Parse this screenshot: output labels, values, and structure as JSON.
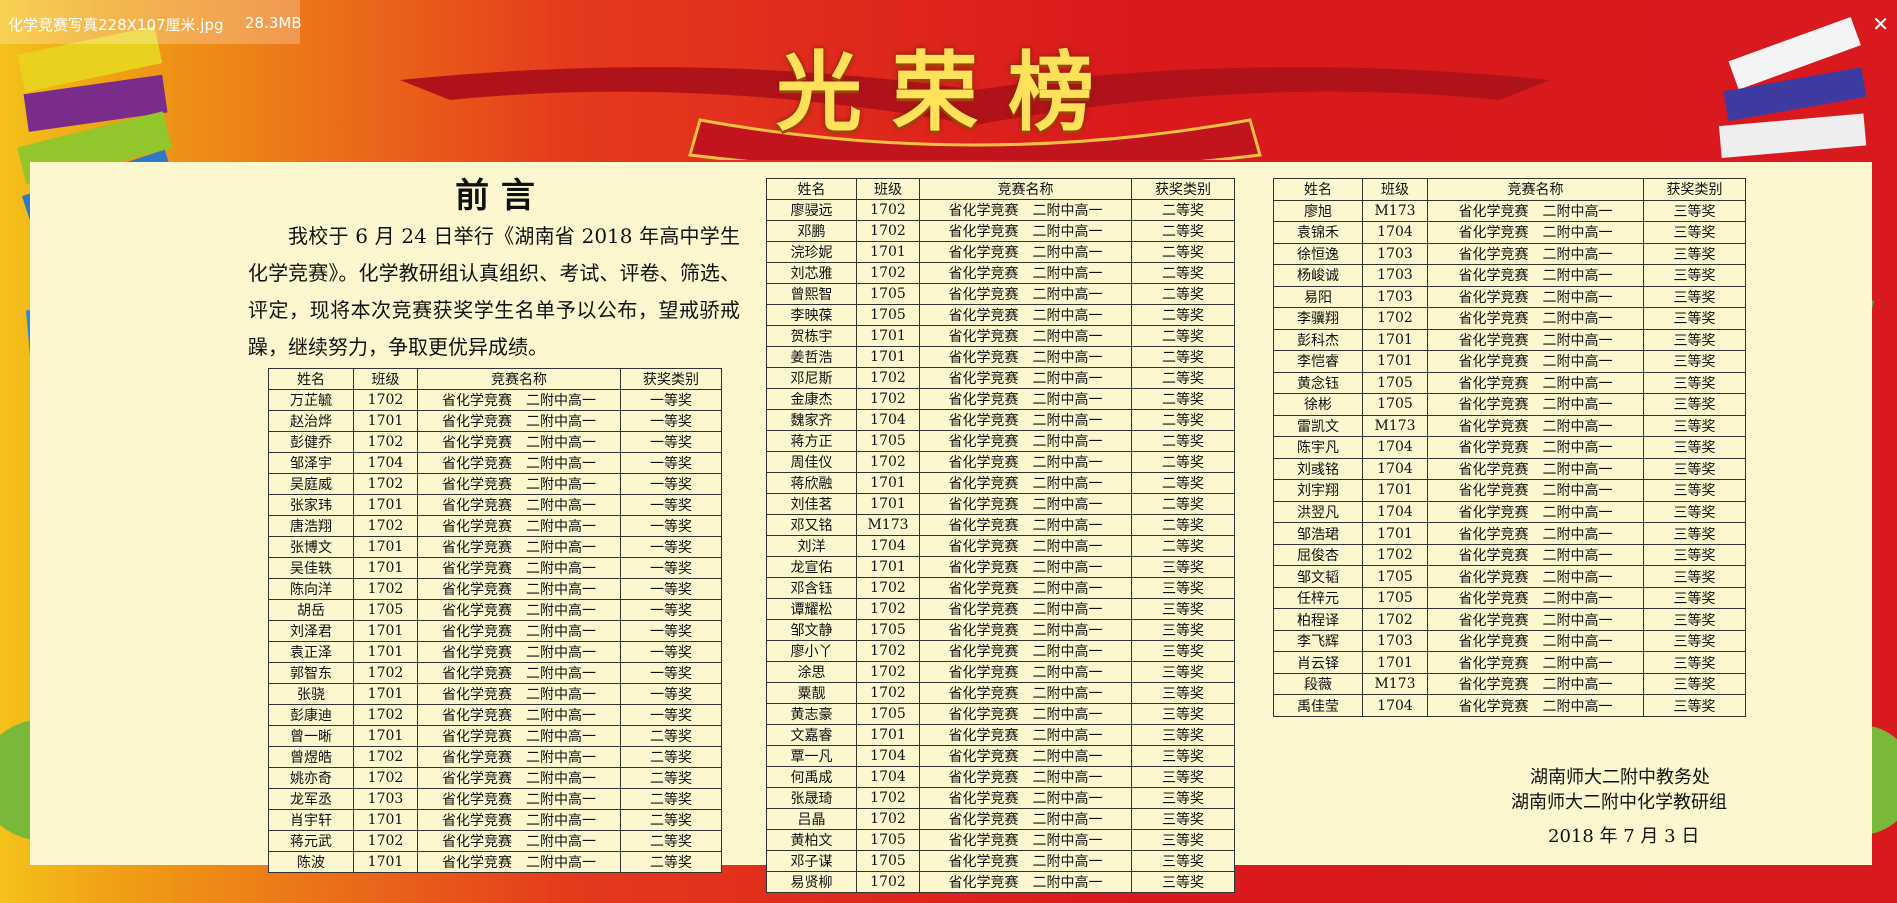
{
  "viewer": {
    "filename": "化学竞赛写真228X107厘米.jpg",
    "filesize": "28.3MB"
  },
  "poster": {
    "title": "光荣榜",
    "preface": {
      "heading": "前 言",
      "text": "我校于 6 月 24 日举行《湖南省 2018 年高中学生化学竞赛》。化学教研组认真组织、考试、评卷、筛选、评定，现将本次竞赛获奖学生名单予以公布，望戒骄戒躁，继续努力，争取更优异成绩。"
    },
    "tables": [
      {
        "header": [
          "姓名",
          "班级",
          "竞赛名称",
          "获奖类别"
        ],
        "rows": [
          [
            "万芷毓",
            "1702",
            "省化学竞赛　二附中高一",
            "一等奖"
          ],
          [
            "赵治烨",
            "1701",
            "省化学竞赛　二附中高一",
            "一等奖"
          ],
          [
            "彭健乔",
            "1702",
            "省化学竞赛　二附中高一",
            "一等奖"
          ],
          [
            "邹泽宇",
            "1704",
            "省化学竞赛　二附中高一",
            "一等奖"
          ],
          [
            "吴庭威",
            "1702",
            "省化学竞赛　二附中高一",
            "一等奖"
          ],
          [
            "张家玮",
            "1701",
            "省化学竞赛　二附中高一",
            "一等奖"
          ],
          [
            "唐浩翔",
            "1702",
            "省化学竞赛　二附中高一",
            "一等奖"
          ],
          [
            "张博文",
            "1701",
            "省化学竞赛　二附中高一",
            "一等奖"
          ],
          [
            "吴佳轶",
            "1701",
            "省化学竞赛　二附中高一",
            "一等奖"
          ],
          [
            "陈向洋",
            "1702",
            "省化学竞赛　二附中高一",
            "一等奖"
          ],
          [
            "胡岳",
            "1705",
            "省化学竞赛　二附中高一",
            "一等奖"
          ],
          [
            "刘泽君",
            "1701",
            "省化学竞赛　二附中高一",
            "一等奖"
          ],
          [
            "袁正泽",
            "1701",
            "省化学竞赛　二附中高一",
            "一等奖"
          ],
          [
            "郭智东",
            "1702",
            "省化学竞赛　二附中高一",
            "一等奖"
          ],
          [
            "张骁",
            "1701",
            "省化学竞赛　二附中高一",
            "一等奖"
          ],
          [
            "彭康迪",
            "1702",
            "省化学竞赛　二附中高一",
            "一等奖"
          ],
          [
            "曾一晰",
            "1701",
            "省化学竞赛　二附中高一",
            "二等奖"
          ],
          [
            "曾煜皓",
            "1702",
            "省化学竞赛　二附中高一",
            "二等奖"
          ],
          [
            "姚亦奇",
            "1702",
            "省化学竞赛　二附中高一",
            "二等奖"
          ],
          [
            "龙军丞",
            "1703",
            "省化学竞赛　二附中高一",
            "二等奖"
          ],
          [
            "肖宇轩",
            "1701",
            "省化学竞赛　二附中高一",
            "二等奖"
          ],
          [
            "蒋元武",
            "1702",
            "省化学竞赛　二附中高一",
            "二等奖"
          ],
          [
            "陈波",
            "1701",
            "省化学竞赛　二附中高一",
            "二等奖"
          ]
        ]
      },
      {
        "header": [
          "姓名",
          "班级",
          "竞赛名称",
          "获奖类别"
        ],
        "rows": [
          [
            "廖骎远",
            "1702",
            "省化学竞赛　二附中高一",
            "二等奖"
          ],
          [
            "邓鹏",
            "1702",
            "省化学竞赛　二附中高一",
            "二等奖"
          ],
          [
            "浣珍妮",
            "1701",
            "省化学竞赛　二附中高一",
            "二等奖"
          ],
          [
            "刘芯雅",
            "1702",
            "省化学竞赛　二附中高一",
            "二等奖"
          ],
          [
            "曾熙智",
            "1705",
            "省化学竞赛　二附中高一",
            "二等奖"
          ],
          [
            "李映葆",
            "1705",
            "省化学竞赛　二附中高一",
            "二等奖"
          ],
          [
            "贺栋宇",
            "1701",
            "省化学竞赛　二附中高一",
            "二等奖"
          ],
          [
            "姜哲浩",
            "1701",
            "省化学竞赛　二附中高一",
            "二等奖"
          ],
          [
            "邓尼斯",
            "1702",
            "省化学竞赛　二附中高一",
            "二等奖"
          ],
          [
            "金康杰",
            "1702",
            "省化学竞赛　二附中高一",
            "二等奖"
          ],
          [
            "魏家齐",
            "1704",
            "省化学竞赛　二附中高一",
            "二等奖"
          ],
          [
            "蒋方正",
            "1705",
            "省化学竞赛　二附中高一",
            "二等奖"
          ],
          [
            "周佳仪",
            "1702",
            "省化学竞赛　二附中高一",
            "二等奖"
          ],
          [
            "蒋欣融",
            "1701",
            "省化学竞赛　二附中高一",
            "二等奖"
          ],
          [
            "刘佳茗",
            "1701",
            "省化学竞赛　二附中高一",
            "二等奖"
          ],
          [
            "邓又铭",
            "M173",
            "省化学竞赛　二附中高一",
            "二等奖"
          ],
          [
            "刘洋",
            "1704",
            "省化学竞赛　二附中高一",
            "二等奖"
          ],
          [
            "龙宣佑",
            "1701",
            "省化学竞赛　二附中高一",
            "三等奖"
          ],
          [
            "邓含钰",
            "1702",
            "省化学竞赛　二附中高一",
            "三等奖"
          ],
          [
            "谭耀松",
            "1702",
            "省化学竞赛　二附中高一",
            "三等奖"
          ],
          [
            "邹文静",
            "1705",
            "省化学竞赛　二附中高一",
            "三等奖"
          ],
          [
            "廖小丫",
            "1702",
            "省化学竞赛　二附中高一",
            "三等奖"
          ],
          [
            "涂思",
            "1702",
            "省化学竞赛　二附中高一",
            "三等奖"
          ],
          [
            "粟靓",
            "1702",
            "省化学竞赛　二附中高一",
            "三等奖"
          ],
          [
            "黄志豪",
            "1705",
            "省化学竞赛　二附中高一",
            "三等奖"
          ],
          [
            "文嘉睿",
            "1701",
            "省化学竞赛　二附中高一",
            "三等奖"
          ],
          [
            "覃一凡",
            "1704",
            "省化学竞赛　二附中高一",
            "三等奖"
          ],
          [
            "何禹成",
            "1704",
            "省化学竞赛　二附中高一",
            "三等奖"
          ],
          [
            "张晟琦",
            "1702",
            "省化学竞赛　二附中高一",
            "三等奖"
          ],
          [
            "吕晶",
            "1702",
            "省化学竞赛　二附中高一",
            "三等奖"
          ],
          [
            "黄柏文",
            "1705",
            "省化学竞赛　二附中高一",
            "三等奖"
          ],
          [
            "邓子谋",
            "1705",
            "省化学竞赛　二附中高一",
            "三等奖"
          ],
          [
            "易贤柳",
            "1702",
            "省化学竞赛　二附中高一",
            "三等奖"
          ]
        ]
      },
      {
        "header": [
          "姓名",
          "班级",
          "竞赛名称",
          "获奖类别"
        ],
        "rows": [
          [
            "廖旭",
            "M173",
            "省化学竞赛　二附中高一",
            "三等奖"
          ],
          [
            "袁锦禾",
            "1704",
            "省化学竞赛　二附中高一",
            "三等奖"
          ],
          [
            "徐恒逸",
            "1703",
            "省化学竞赛　二附中高一",
            "三等奖"
          ],
          [
            "杨峻诚",
            "1703",
            "省化学竞赛　二附中高一",
            "三等奖"
          ],
          [
            "易阳",
            "1703",
            "省化学竞赛　二附中高一",
            "三等奖"
          ],
          [
            "李骥翔",
            "1702",
            "省化学竞赛　二附中高一",
            "三等奖"
          ],
          [
            "彭科杰",
            "1701",
            "省化学竞赛　二附中高一",
            "三等奖"
          ],
          [
            "李恺睿",
            "1701",
            "省化学竞赛　二附中高一",
            "三等奖"
          ],
          [
            "黄念钰",
            "1705",
            "省化学竞赛　二附中高一",
            "三等奖"
          ],
          [
            "徐彬",
            "1705",
            "省化学竞赛　二附中高一",
            "三等奖"
          ],
          [
            "雷凯文",
            "M173",
            "省化学竞赛　二附中高一",
            "三等奖"
          ],
          [
            "陈宇凡",
            "1704",
            "省化学竞赛　二附中高一",
            "三等奖"
          ],
          [
            "刘彧铭",
            "1704",
            "省化学竞赛　二附中高一",
            "三等奖"
          ],
          [
            "刘宇翔",
            "1701",
            "省化学竞赛　二附中高一",
            "三等奖"
          ],
          [
            "洪翌凡",
            "1704",
            "省化学竞赛　二附中高一",
            "三等奖"
          ],
          [
            "邹浩珺",
            "1701",
            "省化学竞赛　二附中高一",
            "三等奖"
          ],
          [
            "屈俊杏",
            "1702",
            "省化学竞赛　二附中高一",
            "三等奖"
          ],
          [
            "邹文韬",
            "1705",
            "省化学竞赛　二附中高一",
            "三等奖"
          ],
          [
            "任梓元",
            "1705",
            "省化学竞赛　二附中高一",
            "三等奖"
          ],
          [
            "柏程译",
            "1702",
            "省化学竞赛　二附中高一",
            "三等奖"
          ],
          [
            "李飞辉",
            "1703",
            "省化学竞赛　二附中高一",
            "三等奖"
          ],
          [
            "肖云铎",
            "1701",
            "省化学竞赛　二附中高一",
            "三等奖"
          ],
          [
            "段薇",
            "M173",
            "省化学竞赛　二附中高一",
            "三等奖"
          ],
          [
            "禹佳莹",
            "1704",
            "省化学竞赛　二附中高一",
            "三等奖"
          ]
        ]
      }
    ],
    "signature": [
      "湖南师大二附中教务处",
      "湖南师大二附中化学教研组",
      "2018 年 7 月 3 日"
    ]
  }
}
